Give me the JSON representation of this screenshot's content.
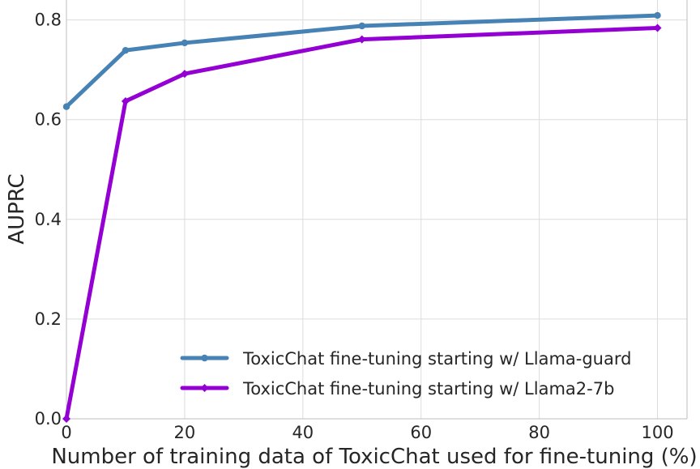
{
  "chart_data": {
    "type": "line",
    "xlabel": "Number of training data of ToxicChat used for fine-tuning (%)",
    "ylabel": "AUPRC",
    "xlim": [
      0,
      105
    ],
    "ylim": [
      0,
      0.84
    ],
    "xticks": [
      0,
      20,
      40,
      60,
      80,
      100
    ],
    "yticks": [
      0.0,
      0.2,
      0.4,
      0.6,
      0.8
    ],
    "xtick_labels": [
      "0",
      "20",
      "40",
      "60",
      "80",
      "100"
    ],
    "ytick_labels": [
      "0.0",
      "0.2",
      "0.4",
      "0.6",
      "0.8"
    ],
    "grid": true,
    "legend_position": "lower-right",
    "series": [
      {
        "name": "ToxicChat fine-tuning starting w/ Llama-guard",
        "color": "#4682b4",
        "marker": "circle",
        "x": [
          0,
          10,
          20,
          50,
          100
        ],
        "y": [
          0.626,
          0.739,
          0.754,
          0.788,
          0.809
        ]
      },
      {
        "name": "ToxicChat fine-tuning starting w/ Llama2-7b",
        "color": "#9400d3",
        "marker": "diamond",
        "x": [
          0,
          10,
          20,
          50,
          100
        ],
        "y": [
          0.0,
          0.637,
          0.692,
          0.761,
          0.784
        ]
      }
    ]
  }
}
